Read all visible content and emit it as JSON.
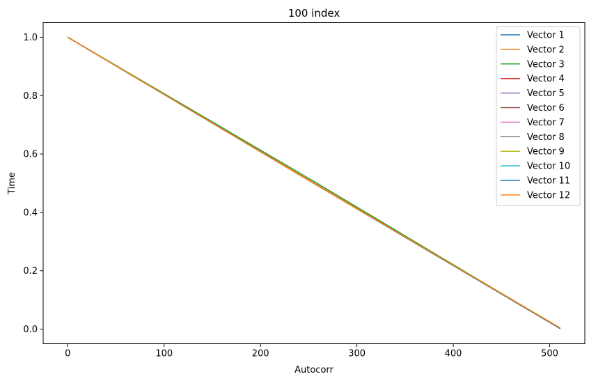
{
  "chart_data": {
    "type": "line",
    "title": "100 index",
    "xlabel": "Autocorr",
    "ylabel": "Time",
    "xlim": [
      -25.5,
      536.5
    ],
    "ylim": [
      -0.05,
      1.05
    ],
    "xticks": [
      0,
      100,
      200,
      300,
      400,
      500
    ],
    "xtick_labels": [
      "0",
      "100",
      "200",
      "300",
      "400",
      "500"
    ],
    "yticks": [
      0.0,
      0.2,
      0.4,
      0.6,
      0.8,
      1.0
    ],
    "ytick_labels": [
      "0.0",
      "0.2",
      "0.4",
      "0.6",
      "0.8",
      "1.0"
    ],
    "grid": false,
    "legend_position": "top-right",
    "x_range": [
      0,
      511
    ],
    "series": [
      {
        "name": "Vector 1",
        "color": "#1f77b4",
        "x": [
          0,
          255,
          511
        ],
        "y": [
          1.0,
          0.5,
          0.002
        ]
      },
      {
        "name": "Vector 2",
        "color": "#ff7f0e",
        "x": [
          0,
          255,
          511
        ],
        "y": [
          1.0,
          0.502,
          0.004
        ]
      },
      {
        "name": "Vector 3",
        "color": "#2ca02c",
        "x": [
          0,
          255,
          511
        ],
        "y": [
          1.0,
          0.507,
          0.002
        ]
      },
      {
        "name": "Vector 4",
        "color": "#d62728",
        "x": [
          0,
          255,
          511
        ],
        "y": [
          1.0,
          0.5,
          0.002
        ]
      },
      {
        "name": "Vector 5",
        "color": "#9467bd",
        "x": [
          0,
          255,
          511
        ],
        "y": [
          1.0,
          0.5,
          0.002
        ]
      },
      {
        "name": "Vector 6",
        "color": "#8c564b",
        "x": [
          0,
          255,
          511
        ],
        "y": [
          1.0,
          0.5,
          0.002
        ]
      },
      {
        "name": "Vector 7",
        "color": "#e377c2",
        "x": [
          0,
          255,
          511
        ],
        "y": [
          1.0,
          0.5,
          0.002
        ]
      },
      {
        "name": "Vector 8",
        "color": "#7f7f7f",
        "x": [
          0,
          255,
          511
        ],
        "y": [
          1.0,
          0.5,
          0.002
        ]
      },
      {
        "name": "Vector 9",
        "color": "#bcbd22",
        "x": [
          0,
          255,
          511
        ],
        "y": [
          1.0,
          0.5,
          0.002
        ]
      },
      {
        "name": "Vector 10",
        "color": "#17becf",
        "x": [
          0,
          255,
          511
        ],
        "y": [
          1.0,
          0.5,
          0.002
        ]
      },
      {
        "name": "Vector 11",
        "color": "#1f77b4",
        "x": [
          0,
          255,
          511
        ],
        "y": [
          1.0,
          0.5,
          0.002
        ]
      },
      {
        "name": "Vector 12",
        "color": "#ff7f0e",
        "x": [
          0,
          255,
          511
        ],
        "y": [
          1.0,
          0.5,
          0.004
        ]
      }
    ]
  }
}
